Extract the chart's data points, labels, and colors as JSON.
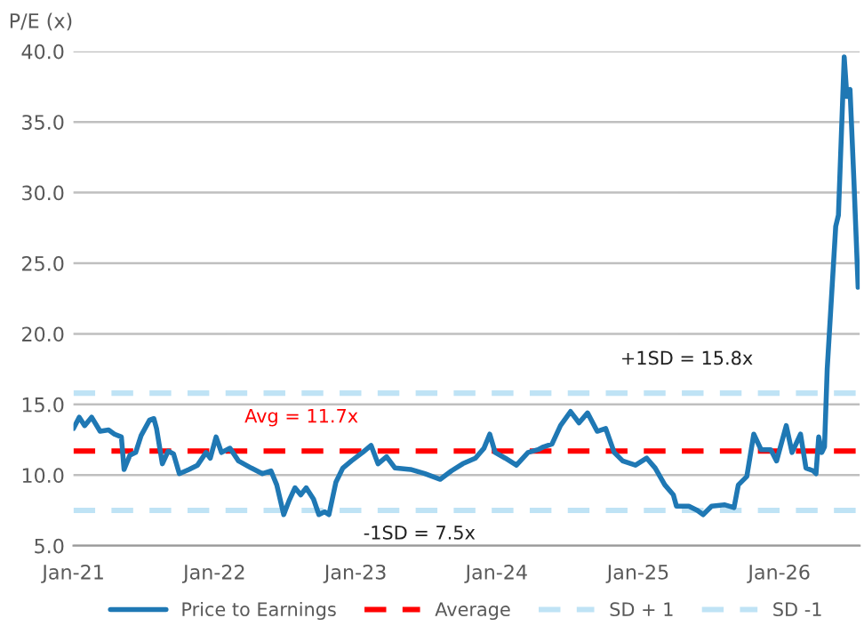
{
  "chart_data": {
    "type": "line",
    "ylabel": "P/E (x)",
    "x": [
      "2021-01-01",
      "2021-01-16",
      "2021-01-30",
      "2021-02-17",
      "2021-03-11",
      "2021-04-02",
      "2021-04-17",
      "2021-05-05",
      "2021-05-12",
      "2021-05-27",
      "2021-06-11",
      "2021-06-25",
      "2021-07-17",
      "2021-07-28",
      "2021-08-04",
      "2021-08-19",
      "2021-09-03",
      "2021-09-17",
      "2021-10-02",
      "2021-10-27",
      "2021-11-18",
      "2021-12-10",
      "2021-12-21",
      "2022-01-05",
      "2022-01-19",
      "2022-02-10",
      "2022-03-04",
      "2022-04-06",
      "2022-05-05",
      "2022-05-27",
      "2022-06-11",
      "2022-06-29",
      "2022-07-13",
      "2022-07-28",
      "2022-08-12",
      "2022-08-26",
      "2022-09-14",
      "2022-09-28",
      "2022-10-13",
      "2022-10-24",
      "2022-11-11",
      "2022-11-29",
      "2022-12-21",
      "2023-01-19",
      "2023-02-10",
      "2023-02-28",
      "2023-03-22",
      "2023-04-13",
      "2023-05-23",
      "2023-06-29",
      "2023-08-08",
      "2023-09-06",
      "2023-10-05",
      "2023-11-07",
      "2023-11-29",
      "2023-12-14",
      "2023-12-28",
      "2024-01-23",
      "2024-02-21",
      "2024-03-22",
      "2024-04-17",
      "2024-05-01",
      "2024-05-23",
      "2024-06-14",
      "2024-07-10",
      "2024-08-01",
      "2024-08-23",
      "2024-09-17",
      "2024-10-09",
      "2024-10-31",
      "2024-11-22",
      "2024-12-25",
      "2025-01-23",
      "2025-02-14",
      "2025-03-11",
      "2025-04-02",
      "2025-04-10",
      "2025-05-12",
      "2025-06-03",
      "2025-06-18",
      "2025-07-10",
      "2025-08-12",
      "2025-09-06",
      "2025-09-17",
      "2025-10-09",
      "2025-10-27",
      "2025-11-15",
      "2025-12-10",
      "2025-12-25",
      "2026-01-19",
      "2026-02-03",
      "2026-02-25",
      "2026-03-11",
      "2026-03-30",
      "2026-04-06",
      "2026-04-13",
      "2026-04-21",
      "2026-04-28",
      "2026-05-05",
      "2026-05-27",
      "2026-06-03",
      "2026-06-18",
      "2026-06-25",
      "2026-07-03",
      "2026-07-13",
      "2026-07-24"
    ],
    "series": [
      {
        "name": "Price to Earnings",
        "color": "#1f78b4",
        "values": [
          13.3,
          14.1,
          13.5,
          14.1,
          13.1,
          13.2,
          12.9,
          12.7,
          10.4,
          11.4,
          11.6,
          12.8,
          13.9,
          14.0,
          13.3,
          10.8,
          11.7,
          11.5,
          10.1,
          10.4,
          10.7,
          11.6,
          11.2,
          12.7,
          11.6,
          11.9,
          11.0,
          10.5,
          10.1,
          10.3,
          9.3,
          7.2,
          8.2,
          9.1,
          8.6,
          9.1,
          8.3,
          7.2,
          7.4,
          7.2,
          9.5,
          10.5,
          11.0,
          11.6,
          12.1,
          10.8,
          11.3,
          10.5,
          10.4,
          10.1,
          9.7,
          10.3,
          10.8,
          11.2,
          11.9,
          12.9,
          11.6,
          11.2,
          10.7,
          11.6,
          11.8,
          12.0,
          12.2,
          13.5,
          14.5,
          13.7,
          14.4,
          13.1,
          13.3,
          11.6,
          11.0,
          10.7,
          11.2,
          10.5,
          9.3,
          8.6,
          7.8,
          7.8,
          7.5,
          7.2,
          7.8,
          7.9,
          7.7,
          9.3,
          9.9,
          12.9,
          11.8,
          11.8,
          11.0,
          13.5,
          11.6,
          12.9,
          10.5,
          10.3,
          10.1,
          12.7,
          11.6,
          12.0,
          17.5,
          27.6,
          28.4,
          39.6,
          36.8,
          37.3,
          30.9,
          23.3
        ]
      }
    ],
    "ref_lines": [
      {
        "axis": "y",
        "value": 11.7,
        "label": "Average",
        "color": "#ff0000",
        "line_style": "dashed"
      },
      {
        "axis": "y",
        "value": 15.8,
        "label": "SD + 1",
        "color": "#bfe3f5",
        "line_style": "dashed"
      },
      {
        "axis": "y",
        "value": 7.5,
        "label": "SD -1",
        "color": "#bfe3f5",
        "line_style": "dashed"
      }
    ],
    "annotations": [
      "Avg = 11.7x",
      "+1SD = 15.8x",
      "-1SD = 7.5x"
    ],
    "xlim": [
      "2021-01-01",
      "2026-07-28"
    ],
    "xticks": [
      {
        "value": "2021-01-01",
        "label": "Jan-21"
      },
      {
        "value": "2022-01-01",
        "label": "Jan-22"
      },
      {
        "value": "2023-01-01",
        "label": "Jan-23"
      },
      {
        "value": "2024-01-01",
        "label": "Jan-24"
      },
      {
        "value": "2025-01-01",
        "label": "Jan-25"
      },
      {
        "value": "2026-01-01",
        "label": "Jan-26"
      }
    ],
    "ylim": [
      5,
      40
    ],
    "yticks": [
      {
        "value": 5,
        "label": "5.0"
      },
      {
        "value": 10,
        "label": "10.0"
      },
      {
        "value": 15,
        "label": "15.0"
      },
      {
        "value": 20,
        "label": "20.0"
      },
      {
        "value": 25,
        "label": "25.0"
      },
      {
        "value": 30,
        "label": "30.0"
      },
      {
        "value": 35,
        "label": "35.0"
      },
      {
        "value": 40,
        "label": "40.0"
      }
    ],
    "grid": "y",
    "legend": "bottom",
    "line_style": "solid",
    "marker": "none"
  }
}
